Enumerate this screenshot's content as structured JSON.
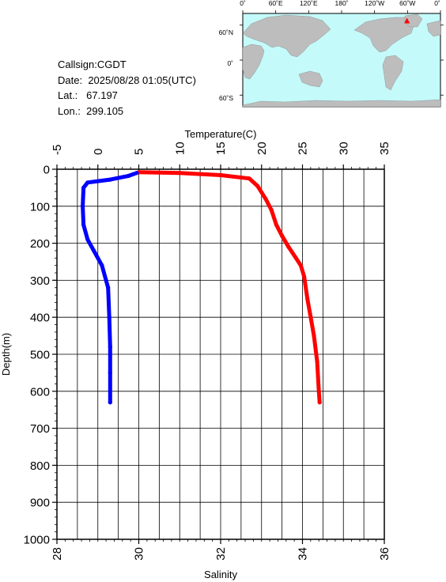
{
  "station": {
    "callsign": "Callsign:CGDT",
    "date_label": "Date:",
    "date_value": "2025/08/28 01:05(UTC)",
    "lat_label": "Lat.:",
    "lat_value": "67.197",
    "lon_label": "Lon.:",
    "lon_value": "299.105"
  },
  "map": {
    "top_labels": [
      "0˚",
      "60˚E",
      "120˚E",
      "180˚",
      "120˚W",
      "60˚W",
      "0˚"
    ],
    "lat_labels": [
      "60˚N",
      "0˚",
      "60˚S"
    ],
    "ocean_color": "#c4fafa",
    "land_color": "#bdbdbd",
    "marker_color": "#ff0000",
    "marker_lon": 299.105,
    "marker_lat": 67.197
  },
  "chart_data": {
    "type": "line",
    "grid": true,
    "depth_axis": {
      "label": "Depth(m)",
      "range": [
        0,
        1000
      ],
      "ticks": [
        "0",
        "100",
        "200",
        "300",
        "400",
        "500",
        "600",
        "700",
        "800",
        "900",
        "1000"
      ],
      "inverted": true
    },
    "temperature_axis": {
      "label": "Temperature(C)",
      "range": [
        -5,
        35
      ],
      "ticks": [
        "-5",
        "0",
        "5",
        "10",
        "15",
        "20",
        "25",
        "30",
        "35"
      ],
      "position": "top"
    },
    "salinity_axis": {
      "label": "Salinity",
      "range": [
        28,
        36
      ],
      "ticks": [
        "28",
        "30",
        "32",
        "34",
        "36"
      ],
      "position": "bottom"
    },
    "series": [
      {
        "quantity": "temperature",
        "color": "#ff0000",
        "points": [
          [
            5,
            8
          ],
          [
            10,
            10
          ],
          [
            15,
            16
          ],
          [
            18.5,
            25
          ],
          [
            19.5,
            45
          ],
          [
            20.5,
            80
          ],
          [
            21.2,
            110
          ],
          [
            21.8,
            150
          ],
          [
            22.5,
            180
          ],
          [
            23.3,
            210
          ],
          [
            24.2,
            240
          ],
          [
            24.8,
            260
          ],
          [
            25.2,
            290
          ],
          [
            25.6,
            350
          ],
          [
            26.0,
            400
          ],
          [
            26.4,
            450
          ],
          [
            26.8,
            520
          ],
          [
            27.0,
            600
          ],
          [
            27.1,
            630
          ]
        ]
      },
      {
        "quantity": "salinity",
        "color": "#0000ff",
        "points": [
          [
            29.95,
            10
          ],
          [
            29.75,
            18
          ],
          [
            29.3,
            28
          ],
          [
            28.75,
            36
          ],
          [
            28.65,
            50
          ],
          [
            28.63,
            100
          ],
          [
            28.65,
            150
          ],
          [
            28.75,
            190
          ],
          [
            28.9,
            220
          ],
          [
            29.1,
            260
          ],
          [
            29.25,
            320
          ],
          [
            29.28,
            400
          ],
          [
            29.3,
            480
          ],
          [
            29.3,
            550
          ],
          [
            29.3,
            630
          ]
        ]
      }
    ]
  }
}
